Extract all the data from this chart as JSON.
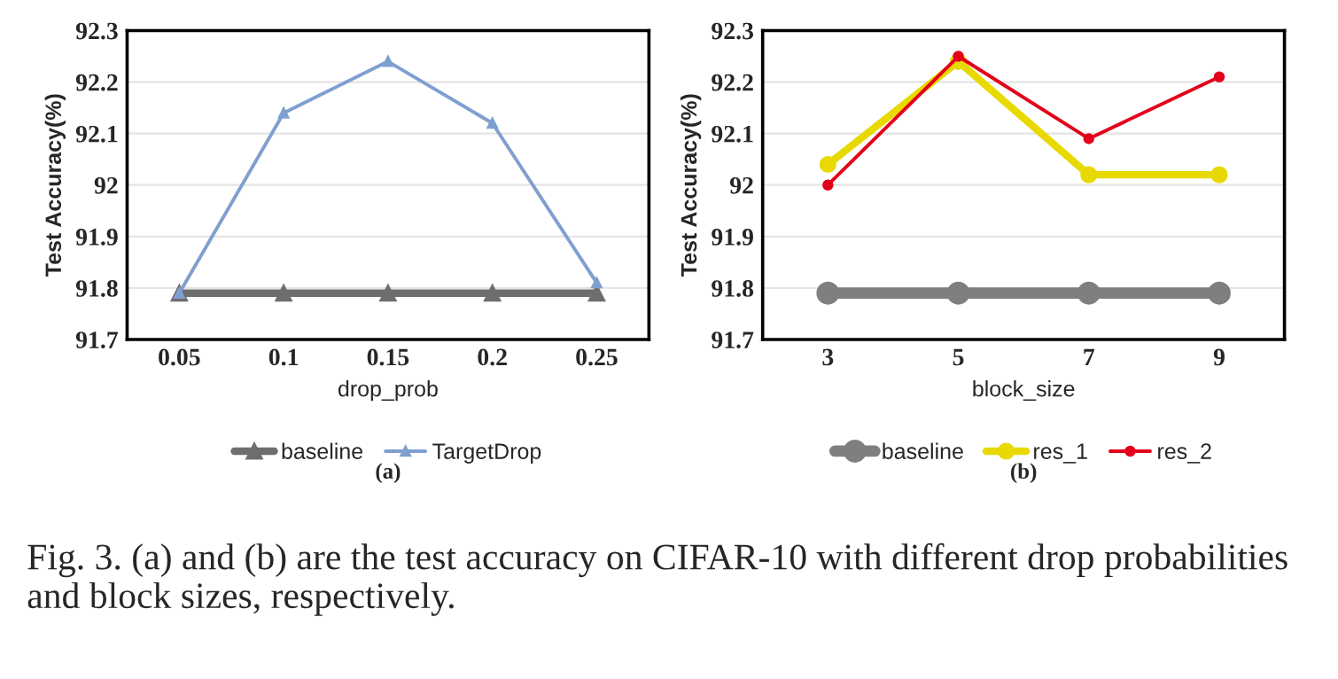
{
  "chart_data": [
    {
      "type": "line",
      "xlabel": "drop_prob",
      "ylabel": "Test Accuracy(%)",
      "categories": [
        "0.05",
        "0.1",
        "0.15",
        "0.2",
        "0.25"
      ],
      "series": [
        {
          "name": "baseline",
          "color": "#6e6e6e",
          "values": [
            91.79,
            91.79,
            91.79,
            91.79,
            91.79
          ]
        },
        {
          "name": "TargetDrop",
          "color": "#7f9fcf",
          "values": [
            91.79,
            92.14,
            92.24,
            92.12,
            91.81
          ]
        }
      ],
      "ylim": [
        91.7,
        92.3
      ],
      "yticks": [
        91.7,
        91.8,
        91.9,
        92,
        92.1,
        92.2,
        92.3
      ],
      "grid": "y",
      "legend": "bottom",
      "marker": "triangle",
      "line_style": "solid",
      "annotations": [
        "(a)"
      ]
    },
    {
      "type": "line",
      "xlabel": "block_size",
      "ylabel": "Test Accuracy(%)",
      "categories": [
        "3",
        "5",
        "7",
        "9"
      ],
      "series": [
        {
          "name": "baseline",
          "color": "#7f7f7f",
          "values": [
            91.79,
            91.79,
            91.79,
            91.79
          ]
        },
        {
          "name": "res_1",
          "color": "#e8d900",
          "values": [
            92.04,
            92.24,
            92.02,
            92.02
          ]
        },
        {
          "name": "res_2",
          "color": "#e3001b",
          "values": [
            92.0,
            92.25,
            92.09,
            92.21
          ]
        }
      ],
      "ylim": [
        91.7,
        92.3
      ],
      "yticks": [
        91.7,
        91.8,
        91.9,
        92,
        92.1,
        92.2,
        92.3
      ],
      "grid": "y",
      "legend": "bottom",
      "marker": "circle",
      "line_style": "solid",
      "annotations": [
        "(b)",
        "Fig. 3. (a) and (b) are the test accuracy on CIFAR-10 with different drop probabilities and block sizes, respectively."
      ]
    }
  ]
}
